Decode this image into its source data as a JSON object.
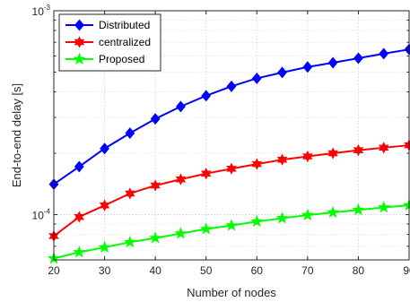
{
  "chart_data": {
    "type": "line",
    "title": "",
    "xlabel": "Number of nodes",
    "ylabel": "End-to-end delay [s]",
    "x_scale": "linear",
    "y_scale": "log",
    "xlim": [
      20,
      90
    ],
    "ylim": [
      6e-05,
      0.001
    ],
    "x_ticks": [
      20,
      30,
      40,
      50,
      60,
      70,
      80,
      90
    ],
    "y_ticks": [
      {
        "value": 0.0001,
        "base": "10",
        "exp": "-4"
      },
      {
        "value": 0.001,
        "base": "10",
        "exp": "-3"
      }
    ],
    "grid": true,
    "legend_position": "top-left",
    "x": [
      20,
      25,
      30,
      35,
      40,
      45,
      50,
      55,
      60,
      65,
      70,
      75,
      80,
      85,
      90
    ],
    "series": [
      {
        "name": "Distributed",
        "color": "#0000ff",
        "marker": "diamond",
        "values": [
          0.000141,
          0.000172,
          0.000211,
          0.000251,
          0.000295,
          0.000339,
          0.000383,
          0.000426,
          0.000466,
          0.000498,
          0.00053,
          0.000556,
          0.000585,
          0.000616,
          0.000646
        ]
      },
      {
        "name": "centralized",
        "color": "#ff0000",
        "marker": "hexagram",
        "values": [
          7.85e-05,
          9.75e-05,
          0.000111,
          0.000127,
          0.000139,
          0.000149,
          0.000159,
          0.000168,
          0.000177,
          0.000186,
          0.000193,
          0.0002,
          0.000207,
          0.000213,
          0.000219
        ]
      },
      {
        "name": "Proposed",
        "color": "#00ff00",
        "marker": "pentagram",
        "values": [
          6.1e-05,
          6.54e-05,
          6.91e-05,
          7.33e-05,
          7.68e-05,
          8.08e-05,
          8.5e-05,
          8.85e-05,
          9.25e-05,
          9.6e-05,
          9.95e-05,
          0.0001025,
          0.0001055,
          0.0001085,
          0.0001112
        ]
      }
    ]
  }
}
